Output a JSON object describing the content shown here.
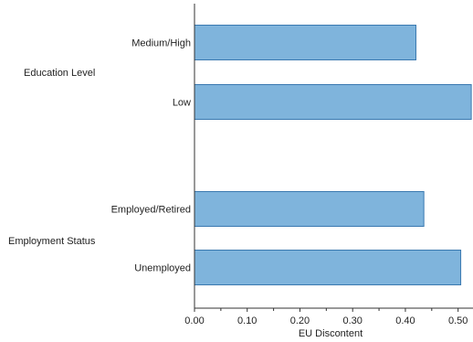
{
  "chart_data": {
    "type": "bar",
    "orientation": "horizontal",
    "title": "",
    "xlabel": "EU Discontent",
    "ylabel": "",
    "xlim": [
      0,
      0.53
    ],
    "xticks": [
      "0.00",
      "0.10",
      "0.20",
      "0.30",
      "0.40",
      "0.50"
    ],
    "bar_color": "#7fb4dc",
    "bar_edge_color": "#3a79b0",
    "grid": false,
    "legend": "none",
    "groups": [
      {
        "label": "Education Level",
        "categories": [
          "Medium/High",
          "Low"
        ],
        "values": [
          0.42,
          0.525
        ]
      },
      {
        "label": "Employment Status",
        "categories": [
          "Employed/Retired",
          "Unemployed"
        ],
        "values": [
          0.435,
          0.505
        ]
      }
    ]
  }
}
